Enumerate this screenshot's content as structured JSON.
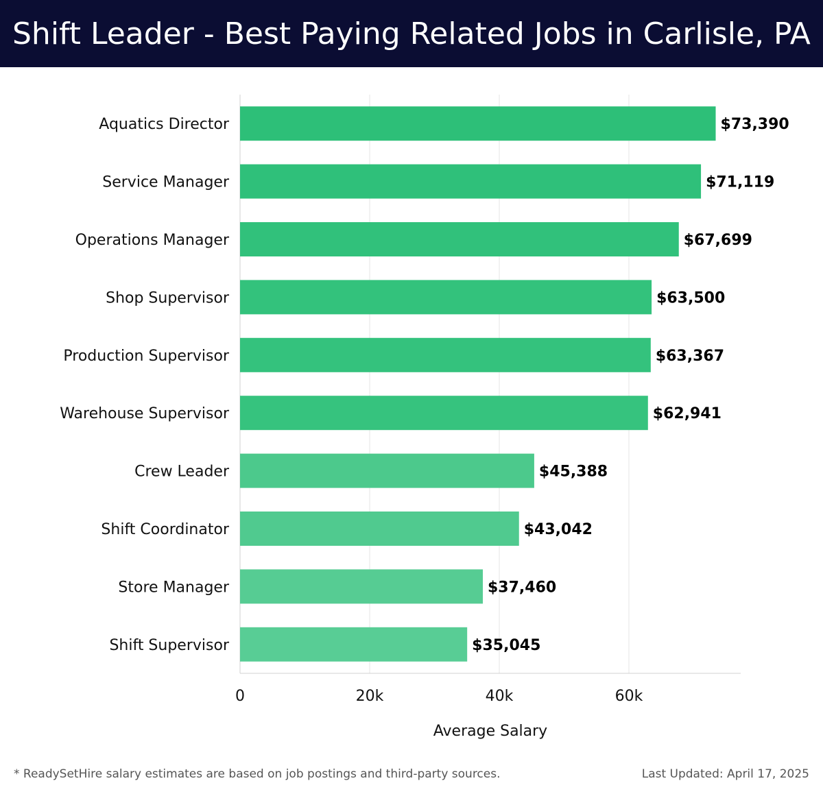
{
  "header": {
    "title": "Shift Leader - Best Paying Related Jobs in Carlisle, PA",
    "background_color": "#0b0d33"
  },
  "chart_data": {
    "type": "bar",
    "orientation": "horizontal",
    "categories": [
      "Aquatics Director",
      "Service Manager",
      "Operations Manager",
      "Shop Supervisor",
      "Production Supervisor",
      "Warehouse Supervisor",
      "Crew Leader",
      "Shift Coordinator",
      "Store Manager",
      "Shift Supervisor"
    ],
    "values": [
      73390,
      71119,
      67699,
      63500,
      63367,
      62941,
      45388,
      43042,
      37460,
      35045
    ],
    "value_labels": [
      "$73,390",
      "$71,119",
      "$67,699",
      "$63,500",
      "$63,367",
      "$62,941",
      "$45,388",
      "$43,042",
      "$37,460",
      "$35,045"
    ],
    "bar_colors": [
      "#2dbf78",
      "#2fc07a",
      "#31c17b",
      "#33c27c",
      "#34c27d",
      "#36c37e",
      "#4cc98c",
      "#50ca8f",
      "#56cc93",
      "#58cd95"
    ],
    "xlabel": "Average Salary",
    "ylabel": "",
    "xlim": [
      0,
      77000
    ],
    "xticks": [
      0,
      20000,
      40000,
      60000
    ],
    "xtick_labels": [
      "0",
      "20k",
      "40k",
      "60k"
    ],
    "grid": "vertical",
    "legend": "none"
  },
  "footer": {
    "note": "* ReadySetHire salary estimates are based on job postings and third-party sources.",
    "updated": "Last Updated: April 17, 2025"
  }
}
